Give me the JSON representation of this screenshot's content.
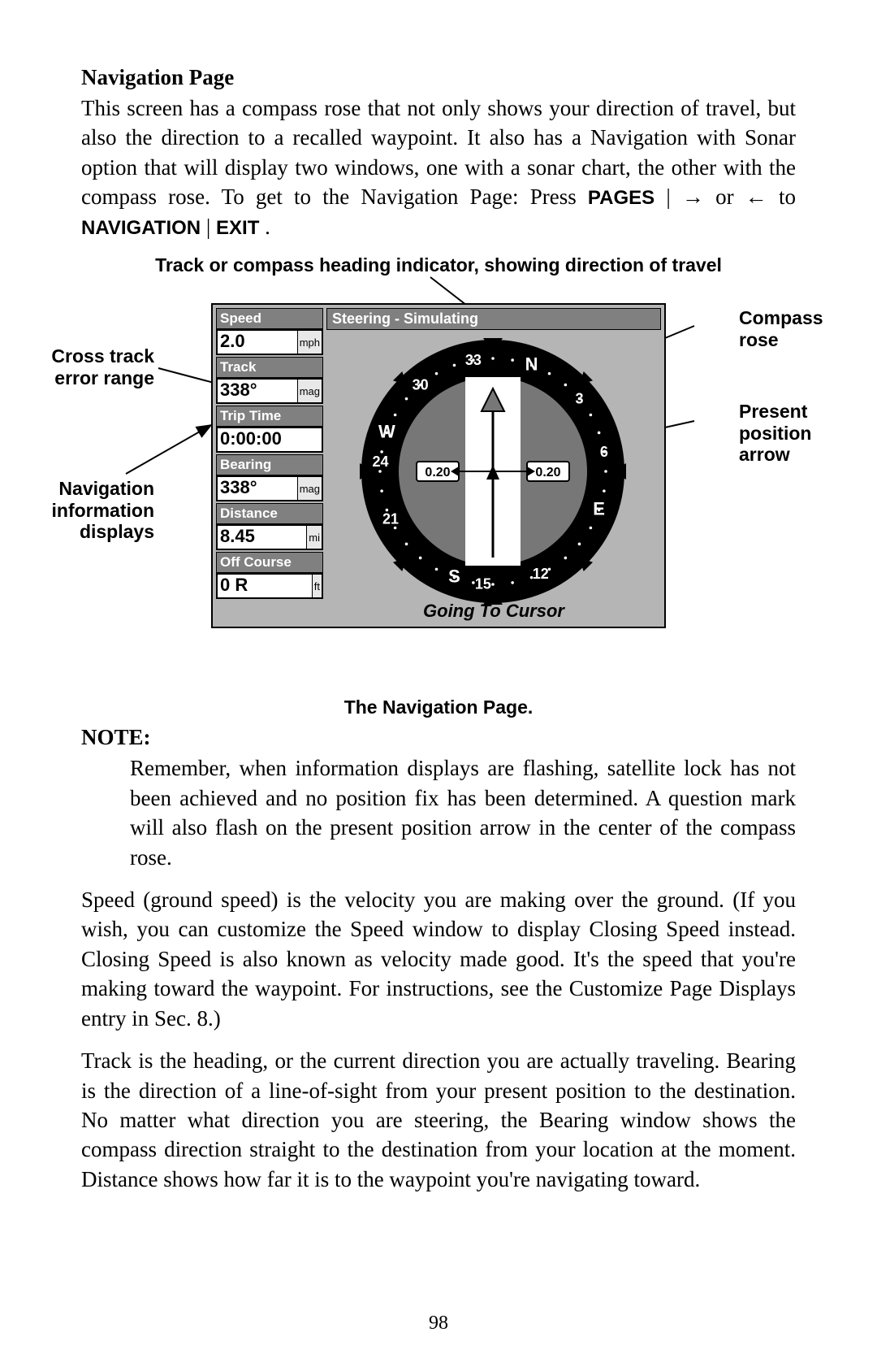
{
  "heading": "Navigation Page",
  "intro_text": "This screen has a compass rose that not only shows your direction of travel, but also the direction to a recalled waypoint. It also has a Navigation with Sonar option that will display two windows, one with a sonar chart, the other with the compass rose. To get to the Navigation Page: Press ",
  "intro_key1": "PAGES",
  "intro_sep1": "| → or ← to ",
  "intro_key2": "NAVIGATION",
  "intro_sep2": "|",
  "intro_key3": "EXIT",
  "intro_end": ".",
  "figure": {
    "top_caption": "Track or compass heading indicator, showing direction of travel",
    "callouts": {
      "cross_track": "Cross track error range",
      "nav_info": "Navigation information displays",
      "compass_rose": "Compass rose",
      "present_pos": "Present position arrow"
    },
    "device": {
      "steering_title": "Steering - Simulating",
      "going_to": "Going To Cursor",
      "info_boxes": [
        {
          "label": "Speed",
          "value": "2.0",
          "unit": "mph"
        },
        {
          "label": "Track",
          "value": "338°",
          "unit": "mag"
        },
        {
          "label": "Trip Time",
          "value": "0:00:00",
          "unit": ""
        },
        {
          "label": "Bearing",
          "value": "338°",
          "unit": "mag"
        },
        {
          "label": "Distance",
          "value": "8.45",
          "unit": "mi"
        },
        {
          "label": "Off Course",
          "value": "0     R",
          "unit": "ft"
        }
      ],
      "compass": {
        "outer_radius": 162,
        "ring_bg": "#000000",
        "inner_radius": 116,
        "center_bg": "#777777",
        "lane_color": "#ffffff",
        "lane_half_width": 34,
        "cardinals": [
          {
            "label": "N",
            "angle": 20
          },
          {
            "label": "E",
            "angle": 110
          },
          {
            "label": "S",
            "angle": 200
          },
          {
            "label": "W",
            "angle": 290
          }
        ],
        "numbers": [
          {
            "label": "33",
            "angle": 350
          },
          {
            "label": "3",
            "angle": 50
          },
          {
            "label": "6",
            "angle": 80
          },
          {
            "label": "12",
            "angle": 155
          },
          {
            "label": "15",
            "angle": 185
          },
          {
            "label": "21",
            "angle": 245
          },
          {
            "label": "24",
            "angle": 275
          },
          {
            "label": "30",
            "angle": 320
          }
        ],
        "xtrack_left": "0.20",
        "xtrack_right": "0.20",
        "label_color": "#ffffff",
        "label_font_size": 18
      }
    },
    "bottom_caption": "The Navigation Page."
  },
  "note_label": "NOTE:",
  "note_text": "Remember, when information displays are flashing, satellite lock has not been achieved and no position fix has been determined. A question mark will also flash on the present position arrow in the center of the compass rose.",
  "para_speed": "Speed (ground speed) is the velocity you are making over the ground. (If you wish, you can customize the Speed window to display Closing Speed instead. Closing Speed is also known as velocity made good. It's the speed that you're making toward the waypoint. For instructions, see the Customize Page Displays entry in Sec. 8.)",
  "para_track": "Track is the heading, or the current direction you are actually traveling. Bearing is the direction of a line-of-sight from your present position to the destination. No matter what direction you are steering, the Bearing window shows the compass direction straight to the destination from your location at the moment. Distance shows how far it is to the waypoint you're navigating toward.",
  "page_number": "98"
}
